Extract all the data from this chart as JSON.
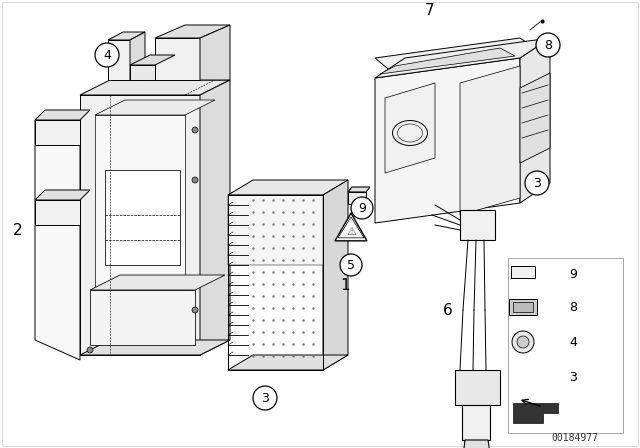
{
  "background": "#ffffff",
  "watermark": "00184977",
  "lc": "#000000",
  "lw": 0.7
}
